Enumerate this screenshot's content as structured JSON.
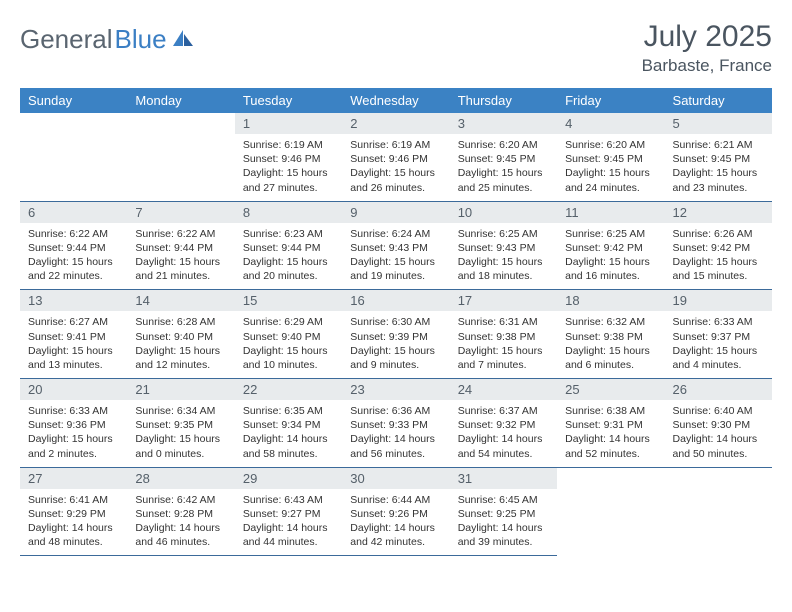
{
  "brand": {
    "part1": "General",
    "part2": "Blue"
  },
  "title": "July 2025",
  "location": "Barbaste, France",
  "colors": {
    "header_bg": "#3b82c4",
    "header_text": "#ffffff",
    "daynum_bg": "#e8ebed",
    "daynum_text": "#55606a",
    "border": "#3b6a9a",
    "body_text": "#333333",
    "title_text": "#4a5560",
    "logo_gray": "#5a6570",
    "logo_blue": "#3b7fc4",
    "page_bg": "#ffffff"
  },
  "typography": {
    "month_title_size": 30,
    "location_size": 17,
    "dayheader_size": 13,
    "daynum_size": 13,
    "body_size": 10.5,
    "logo_size": 26
  },
  "day_headers": [
    "Sunday",
    "Monday",
    "Tuesday",
    "Wednesday",
    "Thursday",
    "Friday",
    "Saturday"
  ],
  "weeks": [
    [
      null,
      null,
      {
        "num": "1",
        "sunrise": "6:19 AM",
        "sunset": "9:46 PM",
        "daylight": "15 hours and 27 minutes."
      },
      {
        "num": "2",
        "sunrise": "6:19 AM",
        "sunset": "9:46 PM",
        "daylight": "15 hours and 26 minutes."
      },
      {
        "num": "3",
        "sunrise": "6:20 AM",
        "sunset": "9:45 PM",
        "daylight": "15 hours and 25 minutes."
      },
      {
        "num": "4",
        "sunrise": "6:20 AM",
        "sunset": "9:45 PM",
        "daylight": "15 hours and 24 minutes."
      },
      {
        "num": "5",
        "sunrise": "6:21 AM",
        "sunset": "9:45 PM",
        "daylight": "15 hours and 23 minutes."
      }
    ],
    [
      {
        "num": "6",
        "sunrise": "6:22 AM",
        "sunset": "9:44 PM",
        "daylight": "15 hours and 22 minutes."
      },
      {
        "num": "7",
        "sunrise": "6:22 AM",
        "sunset": "9:44 PM",
        "daylight": "15 hours and 21 minutes."
      },
      {
        "num": "8",
        "sunrise": "6:23 AM",
        "sunset": "9:44 PM",
        "daylight": "15 hours and 20 minutes."
      },
      {
        "num": "9",
        "sunrise": "6:24 AM",
        "sunset": "9:43 PM",
        "daylight": "15 hours and 19 minutes."
      },
      {
        "num": "10",
        "sunrise": "6:25 AM",
        "sunset": "9:43 PM",
        "daylight": "15 hours and 18 minutes."
      },
      {
        "num": "11",
        "sunrise": "6:25 AM",
        "sunset": "9:42 PM",
        "daylight": "15 hours and 16 minutes."
      },
      {
        "num": "12",
        "sunrise": "6:26 AM",
        "sunset": "9:42 PM",
        "daylight": "15 hours and 15 minutes."
      }
    ],
    [
      {
        "num": "13",
        "sunrise": "6:27 AM",
        "sunset": "9:41 PM",
        "daylight": "15 hours and 13 minutes."
      },
      {
        "num": "14",
        "sunrise": "6:28 AM",
        "sunset": "9:40 PM",
        "daylight": "15 hours and 12 minutes."
      },
      {
        "num": "15",
        "sunrise": "6:29 AM",
        "sunset": "9:40 PM",
        "daylight": "15 hours and 10 minutes."
      },
      {
        "num": "16",
        "sunrise": "6:30 AM",
        "sunset": "9:39 PM",
        "daylight": "15 hours and 9 minutes."
      },
      {
        "num": "17",
        "sunrise": "6:31 AM",
        "sunset": "9:38 PM",
        "daylight": "15 hours and 7 minutes."
      },
      {
        "num": "18",
        "sunrise": "6:32 AM",
        "sunset": "9:38 PM",
        "daylight": "15 hours and 6 minutes."
      },
      {
        "num": "19",
        "sunrise": "6:33 AM",
        "sunset": "9:37 PM",
        "daylight": "15 hours and 4 minutes."
      }
    ],
    [
      {
        "num": "20",
        "sunrise": "6:33 AM",
        "sunset": "9:36 PM",
        "daylight": "15 hours and 2 minutes."
      },
      {
        "num": "21",
        "sunrise": "6:34 AM",
        "sunset": "9:35 PM",
        "daylight": "15 hours and 0 minutes."
      },
      {
        "num": "22",
        "sunrise": "6:35 AM",
        "sunset": "9:34 PM",
        "daylight": "14 hours and 58 minutes."
      },
      {
        "num": "23",
        "sunrise": "6:36 AM",
        "sunset": "9:33 PM",
        "daylight": "14 hours and 56 minutes."
      },
      {
        "num": "24",
        "sunrise": "6:37 AM",
        "sunset": "9:32 PM",
        "daylight": "14 hours and 54 minutes."
      },
      {
        "num": "25",
        "sunrise": "6:38 AM",
        "sunset": "9:31 PM",
        "daylight": "14 hours and 52 minutes."
      },
      {
        "num": "26",
        "sunrise": "6:40 AM",
        "sunset": "9:30 PM",
        "daylight": "14 hours and 50 minutes."
      }
    ],
    [
      {
        "num": "27",
        "sunrise": "6:41 AM",
        "sunset": "9:29 PM",
        "daylight": "14 hours and 48 minutes."
      },
      {
        "num": "28",
        "sunrise": "6:42 AM",
        "sunset": "9:28 PM",
        "daylight": "14 hours and 46 minutes."
      },
      {
        "num": "29",
        "sunrise": "6:43 AM",
        "sunset": "9:27 PM",
        "daylight": "14 hours and 44 minutes."
      },
      {
        "num": "30",
        "sunrise": "6:44 AM",
        "sunset": "9:26 PM",
        "daylight": "14 hours and 42 minutes."
      },
      {
        "num": "31",
        "sunrise": "6:45 AM",
        "sunset": "9:25 PM",
        "daylight": "14 hours and 39 minutes."
      },
      null,
      null
    ]
  ],
  "labels": {
    "sunrise": "Sunrise:",
    "sunset": "Sunset:",
    "daylight": "Daylight:"
  }
}
